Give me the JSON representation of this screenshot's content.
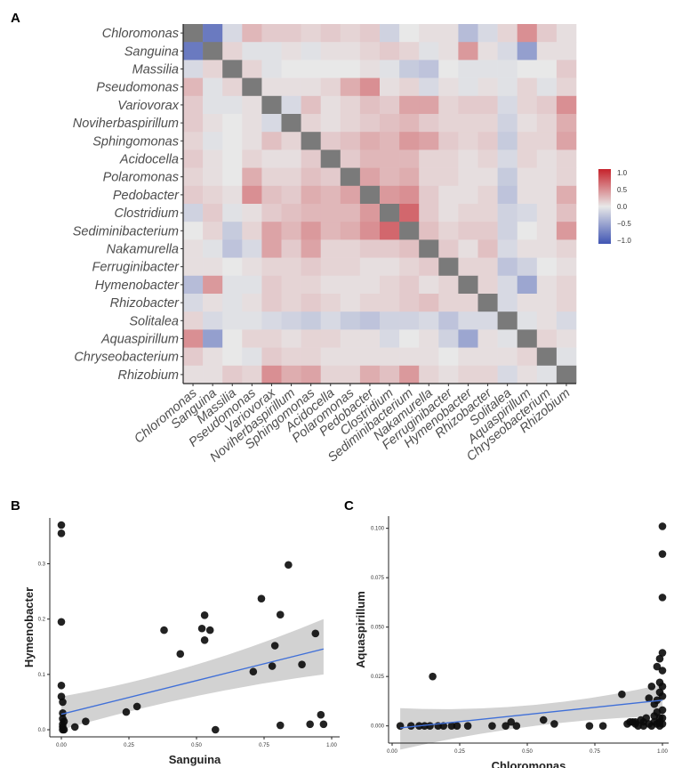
{
  "panels": {
    "a": "A",
    "b": "B",
    "c": "C"
  },
  "chart_data": [
    {
      "type": "heatmap",
      "genera": [
        "Chloromonas",
        "Sanguina",
        "Massilia",
        "Pseudomonas",
        "Variovorax",
        "Noviherbaspirillum",
        "Sphingomonas",
        "Acidocella",
        "Polaromonas",
        "Pedobacter",
        "Clostridium",
        "Sediminibacterium",
        "Nakamurella",
        "Ferruginibacter",
        "Hymenobacter",
        "Rhizobacter",
        "Solitalea",
        "Aquaspirillum",
        "Chryseobacterium",
        "Rhizobium"
      ],
      "matrix": [
        [
          1,
          -0.75,
          -0.1,
          0.25,
          0.15,
          0.15,
          0.1,
          0.15,
          0.1,
          0.15,
          -0.15,
          0,
          0.05,
          0.05,
          -0.3,
          -0.1,
          0.1,
          0.45,
          0.15,
          0.05
        ],
        [
          -0.75,
          1,
          0.1,
          -0.05,
          -0.05,
          0.05,
          -0.05,
          0.05,
          0.05,
          0.1,
          0.15,
          0.1,
          -0.05,
          0.05,
          0.4,
          0.05,
          -0.1,
          -0.5,
          0.05,
          0.05
        ],
        [
          -0.1,
          0.1,
          1,
          0.1,
          -0.05,
          0,
          0,
          0,
          0,
          0.05,
          -0.05,
          -0.2,
          -0.25,
          0,
          -0.05,
          -0.05,
          -0.05,
          0,
          0,
          0.15
        ],
        [
          0.25,
          -0.05,
          0.1,
          1,
          0.05,
          0.05,
          0.05,
          0.1,
          0.3,
          0.45,
          0.05,
          0.1,
          -0.1,
          0.05,
          -0.05,
          0.05,
          -0.05,
          0.1,
          -0.05,
          0.1
        ],
        [
          0.15,
          -0.05,
          -0.05,
          0.05,
          1,
          -0.1,
          0.2,
          0.05,
          0.1,
          0.2,
          0.15,
          0.35,
          0.35,
          0.1,
          0.15,
          0.15,
          -0.1,
          0.1,
          0.15,
          0.45
        ],
        [
          0.15,
          0.05,
          0,
          0.05,
          -0.1,
          1,
          0.1,
          0.05,
          0.1,
          0.15,
          0.2,
          0.25,
          0.15,
          0.1,
          0.1,
          0.1,
          -0.15,
          0.05,
          0.1,
          0.3
        ],
        [
          0.1,
          -0.05,
          0,
          0.05,
          0.2,
          0.1,
          1,
          0.15,
          0.2,
          0.3,
          0.25,
          0.4,
          0.35,
          0.15,
          0.1,
          0.15,
          -0.2,
          0.1,
          0.1,
          0.35
        ],
        [
          0.15,
          0.05,
          0,
          0.1,
          0.05,
          0.05,
          0.15,
          1,
          0.15,
          0.25,
          0.25,
          0.25,
          0.1,
          0.1,
          0.05,
          0.1,
          -0.1,
          0.1,
          0.05,
          0.1
        ],
        [
          0.1,
          0.05,
          0,
          0.3,
          0.1,
          0.1,
          0.2,
          0.15,
          1,
          0.35,
          0.25,
          0.3,
          0.1,
          0.1,
          0.05,
          0.05,
          -0.2,
          0.05,
          0.05,
          0.1
        ],
        [
          0.15,
          0.1,
          0.05,
          0.45,
          0.2,
          0.15,
          0.3,
          0.25,
          0.35,
          1,
          0.4,
          0.45,
          0.15,
          0.05,
          0.05,
          0.1,
          -0.25,
          0.05,
          0.05,
          0.3
        ],
        [
          -0.15,
          0.15,
          -0.05,
          0.05,
          0.15,
          0.2,
          0.25,
          0.25,
          0.25,
          0.4,
          1,
          0.65,
          0.15,
          0.05,
          0.1,
          0.1,
          -0.15,
          -0.1,
          0.05,
          0.2
        ],
        [
          0,
          0.1,
          -0.2,
          0.1,
          0.35,
          0.25,
          0.4,
          0.25,
          0.3,
          0.45,
          0.65,
          1,
          0.2,
          0.1,
          0.15,
          0.15,
          -0.15,
          0,
          0.05,
          0.4
        ],
        [
          0.05,
          -0.05,
          -0.25,
          -0.1,
          0.35,
          0.15,
          0.35,
          0.1,
          0.1,
          0.15,
          0.15,
          0.2,
          1,
          0.15,
          0.05,
          0.2,
          -0.1,
          0.05,
          0.05,
          0.1
        ],
        [
          0.05,
          0.05,
          0,
          0.05,
          0.1,
          0.1,
          0.15,
          0.1,
          0.1,
          0.05,
          0.05,
          0.1,
          0.15,
          1,
          0.1,
          0.1,
          -0.25,
          -0.15,
          0,
          0.05
        ],
        [
          -0.3,
          0.4,
          -0.05,
          -0.05,
          0.15,
          0.1,
          0.1,
          0.05,
          0.05,
          0.05,
          0.1,
          0.15,
          0.05,
          0.1,
          1,
          0.1,
          -0.1,
          -0.45,
          0.05,
          0.1
        ],
        [
          -0.1,
          0.05,
          -0.05,
          0.05,
          0.15,
          0.1,
          0.15,
          0.1,
          0.05,
          0.1,
          0.1,
          0.15,
          0.2,
          0.1,
          0.1,
          1,
          -0.1,
          0.05,
          0.05,
          0.1
        ],
        [
          0.1,
          -0.1,
          -0.05,
          -0.05,
          -0.1,
          -0.15,
          -0.2,
          -0.1,
          -0.2,
          -0.25,
          -0.15,
          -0.15,
          -0.1,
          -0.25,
          -0.1,
          -0.1,
          1,
          -0.05,
          0.05,
          -0.1
        ],
        [
          0.45,
          -0.5,
          0,
          0.1,
          0.1,
          0.05,
          0.1,
          0.1,
          0.05,
          0.05,
          -0.1,
          0,
          0.05,
          -0.15,
          -0.45,
          0.05,
          -0.05,
          1,
          0.1,
          0.05
        ],
        [
          0.15,
          0.05,
          0,
          -0.05,
          0.15,
          0.1,
          0.1,
          0.05,
          0.05,
          0.05,
          0.05,
          0.05,
          0.05,
          0,
          0.05,
          0.05,
          0.05,
          0.1,
          1,
          -0.05
        ],
        [
          0.05,
          0.05,
          0.15,
          0.1,
          0.45,
          0.3,
          0.35,
          0.1,
          0.1,
          0.3,
          0.2,
          0.4,
          0.1,
          0.05,
          0.1,
          0.1,
          -0.1,
          0.05,
          -0.05,
          1
        ]
      ],
      "legend": {
        "min": -1.0,
        "max": 1.0,
        "ticks": [
          "1.0",
          "0.5",
          "0.0",
          "−0.5",
          "−1.0"
        ],
        "low_color": "#4055b3",
        "mid_color": "#e8e8e8",
        "high_color": "#c6222b",
        "diag_color": "#7a7a7a"
      }
    },
    {
      "type": "scatter",
      "xlabel": "Sanguina",
      "ylabel": "Hymenobacter",
      "xlim": [
        0,
        1.0
      ],
      "ylim": [
        0,
        0.37
      ],
      "xticks": [
        "0.00",
        "0.25",
        "0.50",
        "0.75",
        "1.00"
      ],
      "yticks": [
        "0.0",
        "0.1",
        "0.2",
        "0.3"
      ],
      "x": [
        0.0,
        0.0,
        0.0,
        0.0,
        0.0,
        0.005,
        0.005,
        0.005,
        0.005,
        0.005,
        0.005,
        0.01,
        0.01,
        0.05,
        0.09,
        0.24,
        0.28,
        0.38,
        0.44,
        0.52,
        0.53,
        0.53,
        0.55,
        0.57,
        0.71,
        0.74,
        0.78,
        0.79,
        0.81,
        0.81,
        0.84,
        0.89,
        0.92,
        0.94,
        0.96,
        0.97
      ],
      "y": [
        0.37,
        0.355,
        0.195,
        0.08,
        0.06,
        0.05,
        0.03,
        0.02,
        0.01,
        0.005,
        0.0,
        0.015,
        0.0,
        0.005,
        0.015,
        0.032,
        0.042,
        0.18,
        0.137,
        0.183,
        0.162,
        0.207,
        0.18,
        0.0,
        0.105,
        0.237,
        0.115,
        0.152,
        0.208,
        0.008,
        0.298,
        0.118,
        0.01,
        0.174,
        0.027,
        0.01
      ],
      "fit": {
        "x0": 0,
        "y0": 0.028,
        "x1": 0.97,
        "y1": 0.146,
        "band_low_left": 0.0,
        "band_high_left": 0.06,
        "band_low_right": 0.1,
        "band_high_right": 0.2,
        "band_mid_low": 0.065,
        "band_mid_high": 0.105
      },
      "colors": {
        "point": "#0a0a0a",
        "line": "#3f6fd8",
        "band": "#d2d2d2"
      }
    },
    {
      "type": "scatter",
      "xlabel": "Chloromonas",
      "ylabel": "Aquaspirillum",
      "xlim": [
        0,
        1.0
      ],
      "ylim": [
        -0.006,
        0.103
      ],
      "xticks": [
        "0.00",
        "0.25",
        "0.50",
        "0.75",
        "1.00"
      ],
      "yticks": [
        "0.000",
        "0.025",
        "0.050",
        "0.075",
        "0.100"
      ],
      "x": [
        0.03,
        0.07,
        0.1,
        0.12,
        0.14,
        0.15,
        0.17,
        0.19,
        0.22,
        0.24,
        0.28,
        0.37,
        0.42,
        0.44,
        0.46,
        0.56,
        0.6,
        0.73,
        0.78,
        0.85,
        0.87,
        0.88,
        0.89,
        0.9,
        0.9,
        0.91,
        0.92,
        0.93,
        0.93,
        0.94,
        0.95,
        0.95,
        0.96,
        0.96,
        0.97,
        0.97,
        0.97,
        0.98,
        0.98,
        0.98,
        0.98,
        0.99,
        0.99,
        0.99,
        0.99,
        0.99,
        0.99,
        1.0,
        1.0,
        1.0,
        1.0,
        1.0,
        1.0,
        1.0,
        1.0,
        1.0,
        1.0
      ],
      "y": [
        0.0,
        0.0,
        0.0,
        0.0,
        0.0,
        0.025,
        0.0,
        0.0,
        0.0,
        0.0,
        0.0,
        0.0,
        0.0,
        0.002,
        0.0,
        0.003,
        0.001,
        0.0,
        0.0,
        0.016,
        0.001,
        0.002,
        0.002,
        0.001,
        0.002,
        0.0,
        0.003,
        0.002,
        0.0,
        0.004,
        0.001,
        0.014,
        0.0,
        0.02,
        0.002,
        0.005,
        0.011,
        0.001,
        0.007,
        0.013,
        0.03,
        0.0,
        0.002,
        0.004,
        0.017,
        0.022,
        0.034,
        0.001,
        0.004,
        0.008,
        0.015,
        0.02,
        0.028,
        0.037,
        0.065,
        0.087,
        0.101
      ],
      "fit": {
        "x0": 0.03,
        "y0": -0.001,
        "x1": 1.0,
        "y1": 0.013,
        "band_low_left": -0.012,
        "band_high_left": 0.009,
        "band_low_right": 0.005,
        "band_high_right": 0.021,
        "band_mid_low": 0.002,
        "band_mid_high": 0.007
      },
      "colors": {
        "point": "#0a0a0a",
        "line": "#3f6fd8",
        "band": "#d2d2d2"
      }
    }
  ]
}
